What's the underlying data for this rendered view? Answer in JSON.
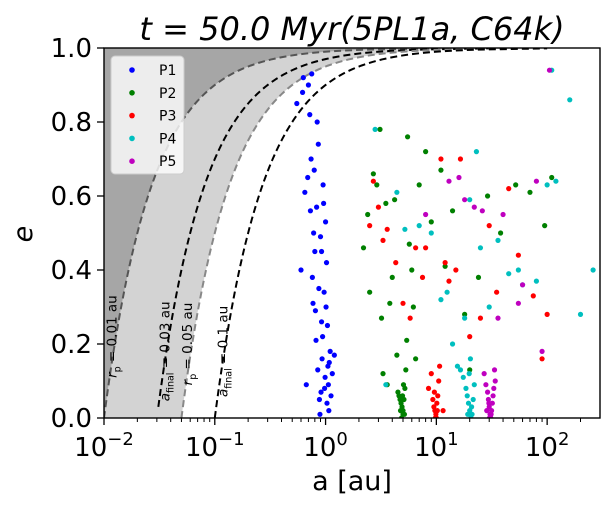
{
  "chart_data": {
    "type": "scatter",
    "title": "t = 50.0 Myr(5PL1a, C64k)",
    "xlabel": "a [au]",
    "ylabel": "e",
    "x_scale": "log",
    "xlim": [
      0.01,
      300
    ],
    "ylim": [
      0.0,
      1.0
    ],
    "x_ticks": [
      {
        "value": 0.01,
        "label": "10",
        "exp": "−2"
      },
      {
        "value": 0.1,
        "label": "10",
        "exp": "−1"
      },
      {
        "value": 1,
        "label": "10",
        "exp": "0"
      },
      {
        "value": 10,
        "label": "10",
        "exp": "1"
      },
      {
        "value": 100,
        "label": "10",
        "exp": "2"
      }
    ],
    "y_ticks": [
      {
        "value": 0.0,
        "label": "0.0"
      },
      {
        "value": 0.2,
        "label": "0.2"
      },
      {
        "value": 0.4,
        "label": "0.4"
      },
      {
        "value": 0.6,
        "label": "0.6"
      },
      {
        "value": 0.8,
        "label": "0.8"
      },
      {
        "value": 1.0,
        "label": "1.0"
      }
    ],
    "grid": false,
    "legend_position": "top-left",
    "shaded_regions": [
      {
        "boundary_rp": 0.01,
        "color": "#a6a6a6"
      },
      {
        "boundary_rp": 0.05,
        "color": "#d3d3d3"
      }
    ],
    "curves": [
      {
        "rp": 0.01,
        "label": "r",
        "sub": "p",
        "rest": " = 0.01 au",
        "style": "dashed",
        "color": "#555555",
        "label_x": 0.013,
        "label_y": 0.22
      },
      {
        "rp": 0.03,
        "label": "a",
        "sub": "final",
        "rest": " = 0.03 au",
        "style": "dashed",
        "color": "#000000",
        "e_min": 0.03,
        "label_x": 0.039,
        "label_y": 0.18
      },
      {
        "rp": 0.05,
        "label": "r",
        "sub": "p",
        "rest": " = 0.05 au",
        "style": "dashed",
        "color": "#888888",
        "label_x": 0.062,
        "label_y": 0.2
      },
      {
        "rp": 0.1,
        "label": "a",
        "sub": "final",
        "rest": " = 0.1 au",
        "style": "dashed",
        "color": "#000000",
        "e_min": 0.0,
        "label_x": 0.13,
        "label_y": 0.18
      }
    ],
    "series": [
      {
        "name": "P1",
        "color": "#0000ff",
        "points": [
          [
            0.55,
            0.85
          ],
          [
            0.6,
            0.4
          ],
          [
            0.62,
            0.88
          ],
          [
            0.63,
            0.92
          ],
          [
            0.65,
            0.61
          ],
          [
            0.67,
            0.09
          ],
          [
            0.7,
            0.9
          ],
          [
            0.72,
            0.82
          ],
          [
            0.74,
            0.7
          ],
          [
            0.76,
            0.38
          ],
          [
            0.77,
            0.31
          ],
          [
            0.79,
            0.67
          ],
          [
            0.8,
            0.45
          ],
          [
            0.82,
            0.21
          ],
          [
            0.83,
            0.57
          ],
          [
            0.85,
            0.13
          ],
          [
            0.86,
            0.74
          ],
          [
            0.88,
            0.05
          ],
          [
            0.9,
            0.49
          ],
          [
            0.92,
            0.26
          ],
          [
            0.93,
            0.16
          ],
          [
            0.95,
            0.63
          ],
          [
            0.97,
            0.34
          ],
          [
            0.98,
            0.08
          ],
          [
            1.0,
            0.53
          ],
          [
            1.02,
            0.42
          ],
          [
            1.04,
            0.25
          ],
          [
            1.05,
            0.14
          ],
          [
            1.07,
            0.02
          ],
          [
            1.1,
            0.18
          ],
          [
            1.15,
            0.12
          ],
          [
            1.2,
            0.17
          ],
          [
            0.75,
            0.93
          ],
          [
            0.78,
            0.5
          ],
          [
            0.81,
            0.29
          ],
          [
            0.84,
            0.8
          ],
          [
            0.87,
            0.35
          ],
          [
            0.91,
            0.07
          ],
          [
            0.94,
            0.22
          ],
          [
            0.96,
            0.58
          ],
          [
            0.99,
            0.11
          ],
          [
            1.01,
            0.3
          ],
          [
            1.03,
            0.04
          ],
          [
            1.06,
            0.09
          ],
          [
            1.08,
            0.15
          ],
          [
            0.69,
            0.65
          ],
          [
            0.73,
            0.56
          ],
          [
            0.89,
            0.01
          ],
          [
            0.92,
            0.45
          ],
          [
            1.12,
            0.06
          ]
        ]
      },
      {
        "name": "P2",
        "color": "#008000",
        "points": [
          [
            2.2,
            0.46
          ],
          [
            2.4,
            0.55
          ],
          [
            2.5,
            0.34
          ],
          [
            2.7,
            0.66
          ],
          [
            2.9,
            0.63
          ],
          [
            3.1,
            0.78
          ],
          [
            3.2,
            0.27
          ],
          [
            3.5,
            0.58
          ],
          [
            3.6,
            0.09
          ],
          [
            3.8,
            0.31
          ],
          [
            4.0,
            0.38
          ],
          [
            4.2,
            0.59
          ],
          [
            4.4,
            0.17
          ],
          [
            4.5,
            0.07
          ],
          [
            4.6,
            0.06
          ],
          [
            4.7,
            0.05
          ],
          [
            4.8,
            0.04
          ],
          [
            4.9,
            0.03
          ],
          [
            5.0,
            0.02
          ],
          [
            5.0,
            0.01
          ],
          [
            5.1,
            0.05
          ],
          [
            5.2,
            0.08
          ],
          [
            5.3,
            0.13
          ],
          [
            5.4,
            0.21
          ],
          [
            5.5,
            0.76
          ],
          [
            5.7,
            0.47
          ],
          [
            6.0,
            0.4
          ],
          [
            6.5,
            0.16
          ],
          [
            7.0,
            0.63
          ],
          [
            8.0,
            0.72
          ],
          [
            9.0,
            0.53
          ],
          [
            11.0,
            0.67
          ],
          [
            12.0,
            0.41
          ],
          [
            14.0,
            0.56
          ],
          [
            18.0,
            0.28
          ],
          [
            20.0,
            0.13
          ],
          [
            24.0,
            0.38
          ],
          [
            29.0,
            0.6
          ],
          [
            38.0,
            0.5
          ],
          [
            52.0,
            0.63
          ],
          [
            70.0,
            0.61
          ],
          [
            95.0,
            0.52
          ],
          [
            110.0,
            0.65
          ],
          [
            4.85,
            0.0
          ],
          [
            4.95,
            0.06
          ],
          [
            5.05,
            0.09
          ],
          [
            4.75,
            0.02
          ],
          [
            5.15,
            0.01
          ],
          [
            3.3,
            0.12
          ],
          [
            6.2,
            0.3
          ]
        ]
      },
      {
        "name": "P3",
        "color": "#ff0000",
        "points": [
          [
            2.5,
            0.52
          ],
          [
            2.7,
            0.64
          ],
          [
            3.0,
            0.57
          ],
          [
            3.3,
            0.48
          ],
          [
            3.6,
            0.51
          ],
          [
            4.3,
            0.42
          ],
          [
            5.0,
            0.31
          ],
          [
            5.8,
            0.27
          ],
          [
            6.5,
            0.46
          ],
          [
            7.5,
            0.38
          ],
          [
            8.0,
            0.46
          ],
          [
            8.5,
            0.08
          ],
          [
            9.0,
            0.12
          ],
          [
            9.3,
            0.05
          ],
          [
            9.5,
            0.03
          ],
          [
            9.7,
            0.02
          ],
          [
            9.9,
            0.01
          ],
          [
            10.0,
            0.0
          ],
          [
            10.1,
            0.04
          ],
          [
            10.3,
            0.06
          ],
          [
            10.5,
            0.1
          ],
          [
            10.7,
            0.14
          ],
          [
            11.0,
            0.7
          ],
          [
            12.0,
            0.42
          ],
          [
            13.0,
            0.37
          ],
          [
            15.0,
            0.4
          ],
          [
            16.5,
            0.7
          ],
          [
            20.0,
            0.22
          ],
          [
            25.0,
            0.27
          ],
          [
            30.0,
            0.52
          ],
          [
            35.0,
            0.34
          ],
          [
            45.0,
            0.62
          ],
          [
            55.0,
            0.44
          ],
          [
            75.0,
            0.33
          ],
          [
            90.0,
            0.16
          ],
          [
            100.0,
            0.28
          ],
          [
            9.8,
            0.0
          ],
          [
            10.2,
            0.02
          ],
          [
            9.6,
            0.07
          ],
          [
            11.5,
            0.02
          ]
        ]
      },
      {
        "name": "P4",
        "color": "#00bfbf",
        "points": [
          [
            2.8,
            0.78
          ],
          [
            3.5,
            0.09
          ],
          [
            4.4,
            0.61
          ],
          [
            5.2,
            0.51
          ],
          [
            7.0,
            0.52
          ],
          [
            9.0,
            0.5
          ],
          [
            11.0,
            0.32
          ],
          [
            12.5,
            0.34
          ],
          [
            14.0,
            0.2
          ],
          [
            15.5,
            0.14
          ],
          [
            16.5,
            0.13
          ],
          [
            17.5,
            0.11
          ],
          [
            18.5,
            0.08
          ],
          [
            19.0,
            0.06
          ],
          [
            19.5,
            0.04
          ],
          [
            20.0,
            0.02
          ],
          [
            20.5,
            0.0
          ],
          [
            21.0,
            0.01
          ],
          [
            21.5,
            0.05
          ],
          [
            22.0,
            0.09
          ],
          [
            19.8,
            0.12
          ],
          [
            20.3,
            0.16
          ],
          [
            18.0,
            0.27
          ],
          [
            20.0,
            0.59
          ],
          [
            23.0,
            0.72
          ],
          [
            25.0,
            0.46
          ],
          [
            30.0,
            0.3
          ],
          [
            36.0,
            0.48
          ],
          [
            45.0,
            0.39
          ],
          [
            55.0,
            0.4
          ],
          [
            60.0,
            0.36
          ],
          [
            80.0,
            0.37
          ],
          [
            100.0,
            0.63
          ],
          [
            110.0,
            0.94
          ],
          [
            120.0,
            0.64
          ],
          [
            160.0,
            0.86
          ],
          [
            200.0,
            0.28
          ],
          [
            260.0,
            0.4
          ],
          [
            19.2,
            0.01
          ],
          [
            20.8,
            0.03
          ]
        ]
      },
      {
        "name": "P5",
        "color": "#bf00bf",
        "points": [
          [
            8.0,
            0.55
          ],
          [
            13.0,
            0.64
          ],
          [
            16.0,
            0.65
          ],
          [
            18.0,
            0.59
          ],
          [
            22.0,
            0.57
          ],
          [
            26.0,
            0.56
          ],
          [
            27.0,
            0.12
          ],
          [
            28.0,
            0.09
          ],
          [
            29.0,
            0.07
          ],
          [
            29.5,
            0.05
          ],
          [
            30.0,
            0.03
          ],
          [
            30.5,
            0.01
          ],
          [
            31.0,
            0.0
          ],
          [
            31.5,
            0.02
          ],
          [
            32.0,
            0.04
          ],
          [
            32.5,
            0.06
          ],
          [
            33.0,
            0.08
          ],
          [
            34.0,
            0.1
          ],
          [
            28.5,
            0.02
          ],
          [
            30.2,
            0.0
          ],
          [
            33.5,
            0.13
          ],
          [
            36.0,
            0.27
          ],
          [
            40.0,
            0.55
          ],
          [
            55.0,
            0.31
          ],
          [
            60.0,
            0.36
          ],
          [
            80.0,
            0.64
          ],
          [
            90.0,
            0.18
          ],
          [
            105.0,
            0.94
          ],
          [
            31.2,
            0.01
          ],
          [
            29.8,
            0.04
          ]
        ]
      }
    ]
  }
}
